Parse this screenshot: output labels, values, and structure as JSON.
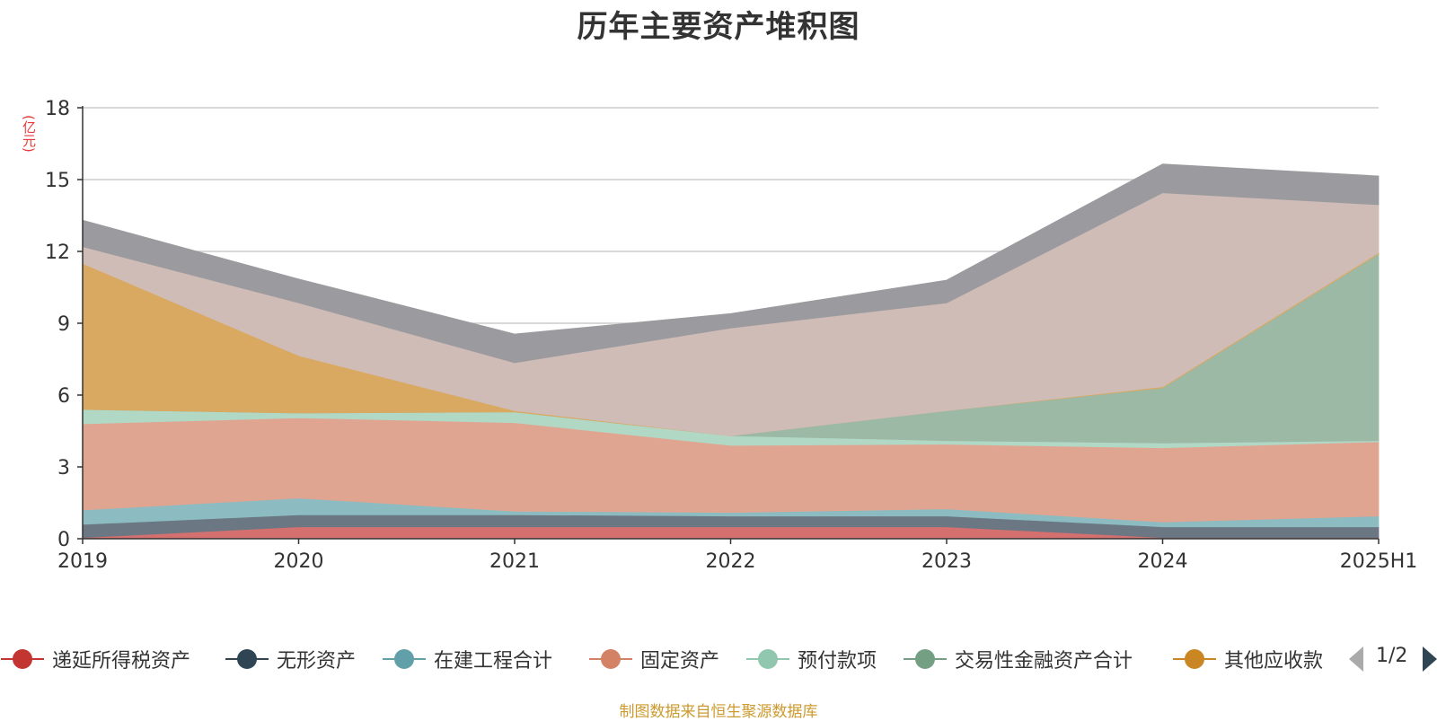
{
  "title": "历年主要资产堆积图",
  "unit_label": "(亿元)",
  "source_note": "制图数据来自恒生聚源数据库",
  "legend_page": "1/2",
  "legend": [
    {
      "name": "递延所得税资产",
      "color": "#c23531"
    },
    {
      "name": "无形资产",
      "color": "#2f4554"
    },
    {
      "name": "在建工程合计",
      "color": "#61a0a8"
    },
    {
      "name": "固定资产",
      "color": "#d48265"
    },
    {
      "name": "预付款项",
      "color": "#91c7ae"
    },
    {
      "name": "交易性金融资产合计",
      "color": "#749f83"
    },
    {
      "name": "其他应收款",
      "color": "#ca8622"
    }
  ],
  "chart_data": {
    "type": "area",
    "stacked": true,
    "title": "历年主要资产堆积图",
    "ylabel": "(亿元)",
    "ylim": [
      0,
      18
    ],
    "yticks": [
      0,
      3,
      6,
      9,
      12,
      15,
      18
    ],
    "grid": true,
    "legend_position": "bottom",
    "categories": [
      "2019",
      "2020",
      "2021",
      "2022",
      "2023",
      "2024",
      "2025H1"
    ],
    "series": [
      {
        "name": "递延所得税资产",
        "color": "#d47070",
        "values": [
          0.05,
          0.5,
          0.5,
          0.5,
          0.5,
          0.05,
          0.05
        ]
      },
      {
        "name": "无形资产",
        "color": "#6b7782",
        "values": [
          0.55,
          0.5,
          0.5,
          0.45,
          0.45,
          0.45,
          0.45
        ]
      },
      {
        "name": "在建工程合计",
        "color": "#8cbcc1",
        "values": [
          0.6,
          0.7,
          0.15,
          0.15,
          0.3,
          0.2,
          0.45
        ]
      },
      {
        "name": "固定资产",
        "color": "#e0a591",
        "values": [
          3.6,
          3.35,
          3.7,
          2.8,
          2.7,
          3.1,
          3.1
        ]
      },
      {
        "name": "预付款项",
        "color": "#b1d8c5",
        "values": [
          0.6,
          0.2,
          0.45,
          0.4,
          0.15,
          0.2,
          0.05
        ]
      },
      {
        "name": "交易性金融资产合计",
        "color": "#9cb9a6",
        "values": [
          0,
          0,
          0,
          0,
          1.25,
          2.3,
          7.8
        ]
      },
      {
        "name": "其他应收款",
        "color": "#d9a962",
        "values": [
          6.1,
          2.4,
          0.05,
          0,
          0,
          0.05,
          0.05
        ]
      },
      {
        "name": "",
        "color": "#d0bcb7",
        "values": [
          0.7,
          2.2,
          2.0,
          4.5,
          4.5,
          8.1,
          2.0
        ]
      },
      {
        "name": "",
        "color": "#9b9b9f",
        "values": [
          1.1,
          1.0,
          1.2,
          0.6,
          0.95,
          1.2,
          1.2
        ]
      }
    ]
  }
}
